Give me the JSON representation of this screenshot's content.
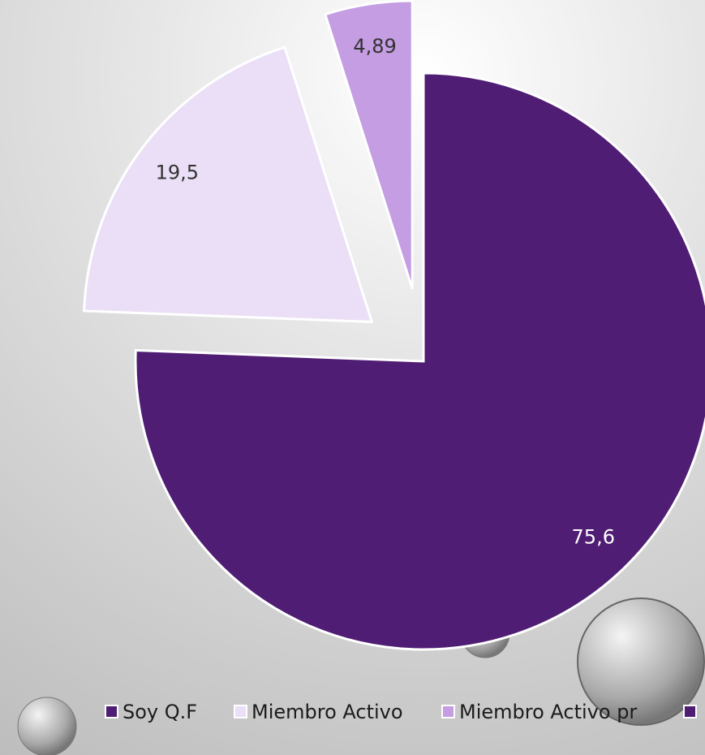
{
  "chart_data": {
    "type": "pie",
    "categories": [
      "Soy Q.F",
      "Miembro Activo",
      "Miembro Activo pr"
    ],
    "values": [
      75.6,
      19.5,
      4.89
    ],
    "value_labels": [
      "75,6",
      "19,5",
      "4,89"
    ],
    "colors": [
      "#4f1d73",
      "#eadff6",
      "#c49de2"
    ],
    "legend": "bottom"
  }
}
